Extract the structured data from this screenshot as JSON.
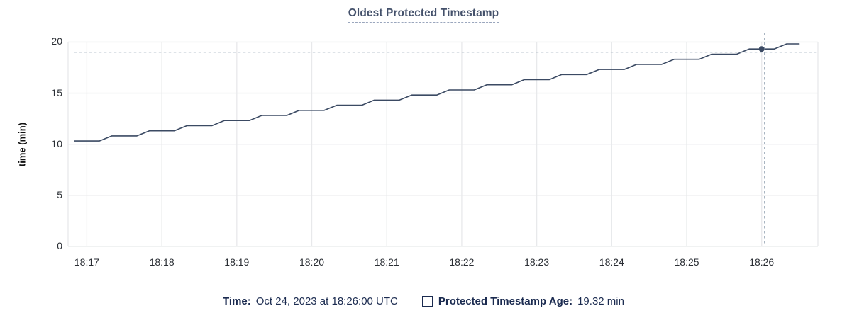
{
  "header": {
    "title": "Oldest Protected Timestamp"
  },
  "chart_data": {
    "type": "line",
    "title": "Oldest Protected Timestamp",
    "xlabel": "",
    "ylabel": "time (min)",
    "grid": true,
    "y_axis": {
      "label": "time (min)",
      "range": [
        0,
        21
      ],
      "ticks": [
        0,
        5,
        10,
        15,
        20
      ]
    },
    "x_axis": {
      "domain": [
        "18:16:45",
        "18:26:45"
      ],
      "ticks": [
        "18:17",
        "18:18",
        "18:19",
        "18:20",
        "18:21",
        "18:22",
        "18:23",
        "18:24",
        "18:25",
        "18:26"
      ]
    },
    "series": [
      {
        "name": "Protected Timestamp Age",
        "unit": "min",
        "points": [
          [
            "18:16:50",
            10.32
          ],
          [
            "18:17:00",
            10.32
          ],
          [
            "18:17:10",
            10.32
          ],
          [
            "18:17:20",
            10.82
          ],
          [
            "18:17:30",
            10.82
          ],
          [
            "18:17:40",
            10.82
          ],
          [
            "18:17:50",
            11.32
          ],
          [
            "18:18:00",
            11.32
          ],
          [
            "18:18:10",
            11.32
          ],
          [
            "18:18:20",
            11.82
          ],
          [
            "18:18:30",
            11.82
          ],
          [
            "18:18:40",
            11.82
          ],
          [
            "18:18:50",
            12.32
          ],
          [
            "18:19:00",
            12.32
          ],
          [
            "18:19:10",
            12.32
          ],
          [
            "18:19:20",
            12.82
          ],
          [
            "18:19:30",
            12.82
          ],
          [
            "18:19:40",
            12.82
          ],
          [
            "18:19:50",
            13.32
          ],
          [
            "18:20:00",
            13.32
          ],
          [
            "18:20:10",
            13.32
          ],
          [
            "18:20:20",
            13.82
          ],
          [
            "18:20:30",
            13.82
          ],
          [
            "18:20:40",
            13.82
          ],
          [
            "18:20:50",
            14.32
          ],
          [
            "18:21:00",
            14.32
          ],
          [
            "18:21:10",
            14.32
          ],
          [
            "18:21:20",
            14.82
          ],
          [
            "18:21:30",
            14.82
          ],
          [
            "18:21:40",
            14.82
          ],
          [
            "18:21:50",
            15.32
          ],
          [
            "18:22:00",
            15.32
          ],
          [
            "18:22:10",
            15.32
          ],
          [
            "18:22:20",
            15.82
          ],
          [
            "18:22:30",
            15.82
          ],
          [
            "18:22:40",
            15.82
          ],
          [
            "18:22:50",
            16.32
          ],
          [
            "18:23:00",
            16.32
          ],
          [
            "18:23:10",
            16.32
          ],
          [
            "18:23:20",
            16.82
          ],
          [
            "18:23:30",
            16.82
          ],
          [
            "18:23:40",
            16.82
          ],
          [
            "18:23:50",
            17.32
          ],
          [
            "18:24:00",
            17.32
          ],
          [
            "18:24:10",
            17.32
          ],
          [
            "18:24:20",
            17.82
          ],
          [
            "18:24:30",
            17.82
          ],
          [
            "18:24:40",
            17.82
          ],
          [
            "18:24:50",
            18.32
          ],
          [
            "18:25:00",
            18.32
          ],
          [
            "18:25:10",
            18.32
          ],
          [
            "18:25:20",
            18.82
          ],
          [
            "18:25:30",
            18.82
          ],
          [
            "18:25:40",
            18.82
          ],
          [
            "18:25:50",
            19.32
          ],
          [
            "18:26:00",
            19.32
          ],
          [
            "18:26:10",
            19.32
          ],
          [
            "18:26:20",
            19.82
          ],
          [
            "18:26:30",
            19.82
          ]
        ]
      }
    ],
    "hover": {
      "time": "18:26:00",
      "value": 19.32
    },
    "colors": {
      "line": "#3b4a63",
      "dot": "#3b4a63",
      "grid": "#e8e9eb",
      "crosshair": "#a9b5c1",
      "tick_text": "#2a2e34"
    },
    "legend_position": "bottom"
  },
  "legend": {
    "time_label": "Time:",
    "time_value": "Oct 24, 2023 at 18:26:00 UTC",
    "series_label": "Protected Timestamp Age:",
    "series_value": "19.32 min",
    "checkbox_icon": "square-outline-icon"
  }
}
